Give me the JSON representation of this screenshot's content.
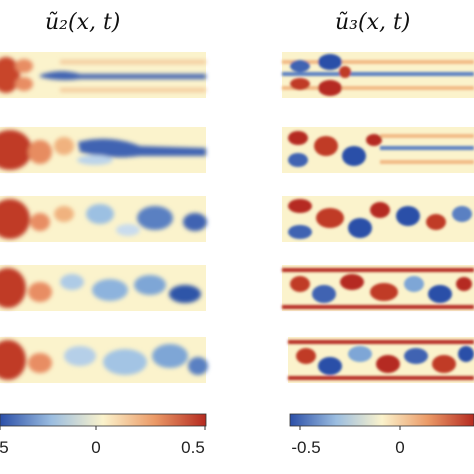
{
  "panels": [
    {
      "title": "ũ₂(x, t)",
      "colorbar_ticks": [
        "5",
        "0",
        "0.5"
      ]
    },
    {
      "title": "ũ₃(x, t)",
      "colorbar_ticks": [
        "-0.5",
        "0"
      ]
    }
  ],
  "colors": {
    "neg": "#2b4fa8",
    "zero": "#fbf3cc",
    "pos": "#b52a20"
  }
}
